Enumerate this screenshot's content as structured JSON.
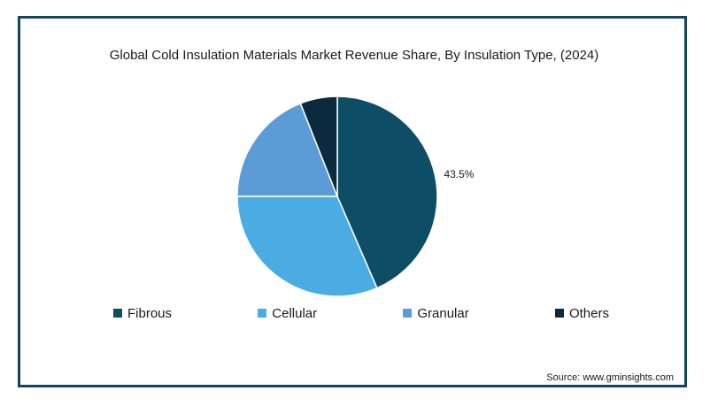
{
  "chart_data": {
    "type": "pie",
    "title": "Global Cold Insulation Materials Market Revenue Share, By Insulation Type, (2024)",
    "slices": [
      {
        "label": "Fibrous",
        "value": 43.5,
        "color": "#0d4d66",
        "data_label": "43.5%"
      },
      {
        "label": "Cellular",
        "value": 31.5,
        "color": "#4aace2",
        "data_label": ""
      },
      {
        "label": "Granular",
        "value": 19.0,
        "color": "#5c9cd6",
        "data_label": ""
      },
      {
        "label": "Others",
        "value": 6.0,
        "color": "#0b2a3e",
        "data_label": ""
      }
    ],
    "legend_position": "bottom"
  },
  "source": "Source: www.gminsights.com"
}
